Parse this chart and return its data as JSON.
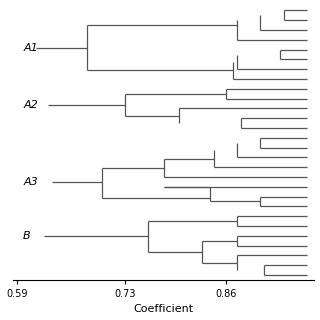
{
  "xlabel": "Coefficient",
  "xlim": [
    0.585,
    0.975
  ],
  "ylim": [
    0.5,
    28.5
  ],
  "xticks": [
    0.59,
    0.73,
    0.86
  ],
  "xtick_labels": [
    "0.59",
    "0.73",
    "0.86"
  ],
  "line_color": "#555555",
  "bg_color": "#ffffff",
  "lw": 0.9,
  "label_fontsize": 8,
  "tick_fontsize": 7
}
